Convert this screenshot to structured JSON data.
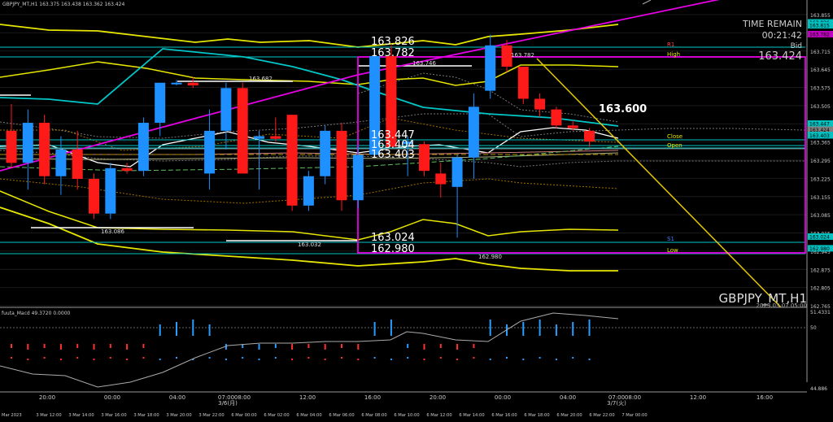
{
  "header": {
    "symbol_line": "GBPJPY_MT,H1  163.375 163.438 163.362 163.424",
    "symbol_watermark": "GBPJPY_MT,H1",
    "watermark_date": "2023.03.07 05:00"
  },
  "time_remain": {
    "label": "TIME REMAIN",
    "value": "00:21:42",
    "bid_label": "Bid",
    "bid_value": "163.424"
  },
  "level_labels": {
    "r1": "R1",
    "high": "High",
    "close": "Close",
    "open": "Open",
    "s1": "S1",
    "low": "Low"
  },
  "price_annotations": {
    "a_163826": "163.826",
    "a_163782": "163.782",
    "a_163447": "163.447",
    "a_163404": "163.404",
    "a_163403": "163.403",
    "a_163024": "163.024",
    "a_162980": "162.980",
    "a_163600": "163.600",
    "small_163746": "163.746",
    "small_163782": "163.782",
    "small_163682": "163.682",
    "small_163086": "163.086",
    "small_163032": "163.032",
    "small_162980": "162.980"
  },
  "price_axis": {
    "labels": [
      "163.855",
      "163.785",
      "163.715",
      "163.645",
      "163.575",
      "163.505",
      "163.435",
      "163.365",
      "163.295",
      "163.225",
      "163.155",
      "163.085",
      "163.015",
      "162.945",
      "162.875",
      "162.805",
      "162.765"
    ],
    "tags": [
      {
        "text": "163.826",
        "color": "#00c0c0"
      },
      {
        "text": "163.815",
        "color": "#00c0c0"
      },
      {
        "text": "163.782",
        "color": "#c000c0"
      },
      {
        "text": "163.447",
        "color": "#00c0c0"
      },
      {
        "text": "163.424",
        "color": "#808080"
      },
      {
        "text": "163.404",
        "color": "#00c0c0"
      },
      {
        "text": "163.403",
        "color": "#00c0c0"
      },
      {
        "text": "163.024",
        "color": "#00c0c0"
      },
      {
        "text": "162.980",
        "color": "#00c0c0"
      }
    ]
  },
  "indicator": {
    "label": "fuuta_Macd 49.3720  0.0000",
    "axis_labels": [
      "51.4331",
      "50",
      "44.886"
    ]
  },
  "time_axis": {
    "top_labels": [
      "20:00",
      "00:00",
      "04:00",
      "07:00",
      "08:00",
      "12:00",
      "16:00",
      "20:00",
      "00:00",
      "04:00",
      "07:00",
      "08:00",
      "12:00",
      "16:00"
    ],
    "day_labels": [
      "3/6(月)",
      "3/7(火)"
    ],
    "bottom_labels": [
      "Mar 2023",
      "3 Mar 12:00",
      "3 Mar 14:00",
      "3 Mar 16:00",
      "3 Mar 18:00",
      "3 Mar 20:00",
      "3 Mar 22:00",
      "6 Mar 00:00",
      "6 Mar 02:00",
      "6 Mar 04:00",
      "6 Mar 06:00",
      "6 Mar 08:00",
      "6 Mar 10:00",
      "6 Mar 12:00",
      "6 Mar 14:00",
      "6 Mar 16:00",
      "6 Mar 18:00",
      "6 Mar 20:00",
      "6 Mar 22:00",
      "7 Mar 00:00"
    ]
  },
  "colors": {
    "bull": "#1e90ff",
    "bear": "#ff1a1a",
    "band": "#e6e600",
    "magenta": "#e600e6",
    "cyan": "#00c8c8",
    "axis_bg": "#000000"
  },
  "chart_data": {
    "type": "candlestick",
    "candles": [
      {
        "o": 163.42,
        "h": 163.52,
        "l": 163.28,
        "c": 163.3
      },
      {
        "o": 163.3,
        "h": 163.5,
        "l": 163.2,
        "c": 163.45
      },
      {
        "o": 163.45,
        "h": 163.48,
        "l": 163.22,
        "c": 163.25
      },
      {
        "o": 163.25,
        "h": 163.4,
        "l": 163.18,
        "c": 163.35
      },
      {
        "o": 163.35,
        "h": 163.42,
        "l": 163.2,
        "c": 163.24
      },
      {
        "o": 163.24,
        "h": 163.26,
        "l": 163.09,
        "c": 163.11
      },
      {
        "o": 163.11,
        "h": 163.3,
        "l": 163.09,
        "c": 163.28
      },
      {
        "o": 163.28,
        "h": 163.3,
        "l": 163.26,
        "c": 163.27
      },
      {
        "o": 163.27,
        "h": 163.47,
        "l": 163.25,
        "c": 163.45
      },
      {
        "o": 163.45,
        "h": 163.6,
        "l": 163.4,
        "c": 163.6
      },
      {
        "o": 163.6,
        "h": 163.61,
        "l": 163.59,
        "c": 163.6
      },
      {
        "o": 163.6,
        "h": 163.62,
        "l": 163.58,
        "c": 163.59
      },
      {
        "o": 163.26,
        "h": 163.5,
        "l": 163.2,
        "c": 163.42
      },
      {
        "o": 163.42,
        "h": 163.6,
        "l": 163.35,
        "c": 163.58
      },
      {
        "o": 163.58,
        "h": 163.6,
        "l": 163.26,
        "c": 163.26
      },
      {
        "o": 163.39,
        "h": 163.42,
        "l": 163.2,
        "c": 163.4
      },
      {
        "o": 163.4,
        "h": 163.47,
        "l": 163.38,
        "c": 163.39
      },
      {
        "o": 163.48,
        "h": 163.48,
        "l": 163.12,
        "c": 163.14
      },
      {
        "o": 163.14,
        "h": 163.27,
        "l": 163.12,
        "c": 163.25
      },
      {
        "o": 163.25,
        "h": 163.44,
        "l": 163.22,
        "c": 163.42
      },
      {
        "o": 163.42,
        "h": 163.45,
        "l": 163.12,
        "c": 163.16
      },
      {
        "o": 163.16,
        "h": 163.36,
        "l": 163.13,
        "c": 163.33
      },
      {
        "o": 163.33,
        "h": 163.72,
        "l": 163.32,
        "c": 163.7
      },
      {
        "o": 163.7,
        "h": 163.74,
        "l": 163.36,
        "c": 163.36
      },
      {
        "o": 163.37,
        "h": 163.4,
        "l": 163.25,
        "c": 163.38
      },
      {
        "o": 163.37,
        "h": 163.38,
        "l": 163.25,
        "c": 163.27
      },
      {
        "o": 163.26,
        "h": 163.3,
        "l": 163.17,
        "c": 163.22
      },
      {
        "o": 163.21,
        "h": 163.33,
        "l": 163.02,
        "c": 163.32
      },
      {
        "o": 163.32,
        "h": 163.56,
        "l": 163.24,
        "c": 163.51
      },
      {
        "o": 163.57,
        "h": 163.78,
        "l": 163.54,
        "c": 163.74
      },
      {
        "o": 163.74,
        "h": 163.76,
        "l": 163.64,
        "c": 163.66
      },
      {
        "o": 163.66,
        "h": 163.66,
        "l": 163.52,
        "c": 163.54
      },
      {
        "o": 163.54,
        "h": 163.56,
        "l": 163.47,
        "c": 163.5
      },
      {
        "o": 163.5,
        "h": 163.51,
        "l": 163.43,
        "c": 163.44
      },
      {
        "o": 163.44,
        "h": 163.46,
        "l": 163.42,
        "c": 163.43
      },
      {
        "o": 163.42,
        "h": 163.43,
        "l": 163.36,
        "c": 163.38
      }
    ]
  }
}
